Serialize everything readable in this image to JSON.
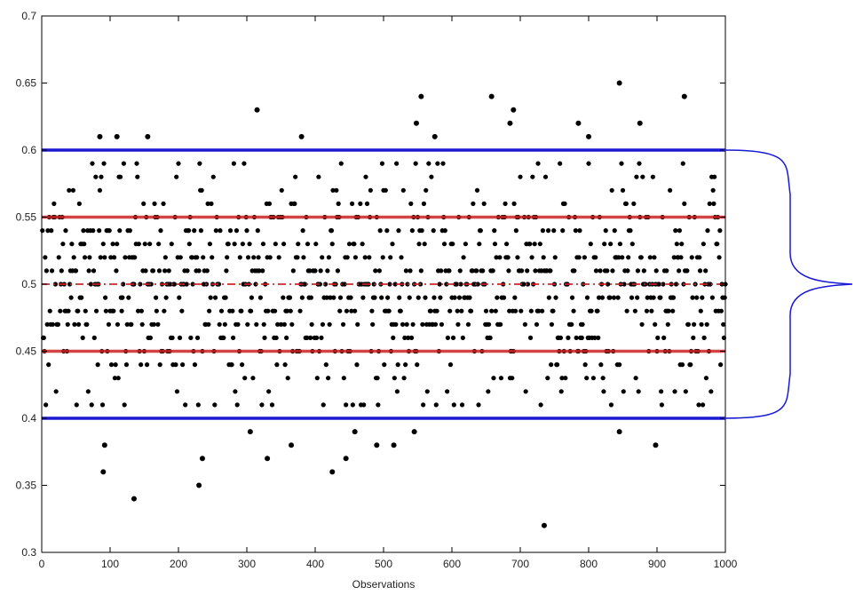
{
  "chart_data": {
    "type": "scatter",
    "title": "",
    "xlabel": "Observations",
    "ylabel": "",
    "xlim": [
      0,
      1000
    ],
    "ylim": [
      0.3,
      0.7
    ],
    "x_ticks": [
      "0",
      "100",
      "200",
      "300",
      "400",
      "500",
      "600",
      "700",
      "800",
      "900",
      "1000"
    ],
    "y_ticks": [
      "0.3",
      "0.35",
      "0.4",
      "0.45",
      "0.5",
      "0.55",
      "0.6",
      "0.65",
      "0.7"
    ],
    "grid": false,
    "legend": "none",
    "point_color": "#000000",
    "reference_lines": [
      {
        "y": 0.6,
        "color": "#1a1ad6",
        "style": "solid"
      },
      {
        "y": 0.55,
        "color": "#cc2222",
        "style": "solid"
      },
      {
        "y": 0.5,
        "color": "#cc2222",
        "style": "dash-dot"
      },
      {
        "y": 0.45,
        "color": "#cc2222",
        "style": "solid"
      },
      {
        "y": 0.4,
        "color": "#1a1ad6",
        "style": "solid"
      }
    ],
    "annotation": {
      "type": "brace",
      "from_y": 0.6,
      "to_y": 0.4,
      "color": "#1a1ad6"
    },
    "outliers": [
      {
        "x": 85,
        "y": 0.61
      },
      {
        "x": 110,
        "y": 0.61
      },
      {
        "x": 155,
        "y": 0.61
      },
      {
        "x": 315,
        "y": 0.63
      },
      {
        "x": 380,
        "y": 0.61
      },
      {
        "x": 548,
        "y": 0.62
      },
      {
        "x": 555,
        "y": 0.64
      },
      {
        "x": 575,
        "y": 0.61
      },
      {
        "x": 658,
        "y": 0.64
      },
      {
        "x": 690,
        "y": 0.63
      },
      {
        "x": 685,
        "y": 0.62
      },
      {
        "x": 785,
        "y": 0.62
      },
      {
        "x": 800,
        "y": 0.61
      },
      {
        "x": 845,
        "y": 0.65
      },
      {
        "x": 875,
        "y": 0.62
      },
      {
        "x": 940,
        "y": 0.64
      },
      {
        "x": 92,
        "y": 0.38
      },
      {
        "x": 90,
        "y": 0.36
      },
      {
        "x": 135,
        "y": 0.34
      },
      {
        "x": 230,
        "y": 0.35
      },
      {
        "x": 235,
        "y": 0.37
      },
      {
        "x": 305,
        "y": 0.39
      },
      {
        "x": 330,
        "y": 0.37
      },
      {
        "x": 365,
        "y": 0.38
      },
      {
        "x": 425,
        "y": 0.36
      },
      {
        "x": 445,
        "y": 0.37
      },
      {
        "x": 458,
        "y": 0.39
      },
      {
        "x": 490,
        "y": 0.38
      },
      {
        "x": 515,
        "y": 0.38
      },
      {
        "x": 545,
        "y": 0.39
      },
      {
        "x": 735,
        "y": 0.32
      },
      {
        "x": 845,
        "y": 0.39
      },
      {
        "x": 898,
        "y": 0.38
      }
    ],
    "bulk": {
      "n": 1000,
      "y_range": [
        0.41,
        0.59
      ],
      "y_step": 0.01,
      "center": 0.5
    }
  }
}
